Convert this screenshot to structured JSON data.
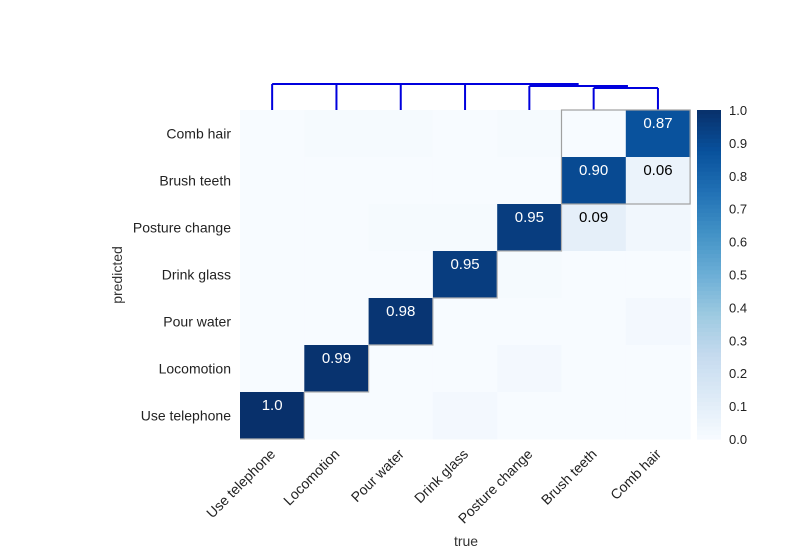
{
  "chart_data": {
    "type": "heatmap",
    "xlabel": "true",
    "ylabel": "predicted",
    "x_categories": [
      "Use telephone",
      "Locomotion",
      "Pour water",
      "Drink glass",
      "Posture change",
      "Brush teeth",
      "Comb hair"
    ],
    "y_categories_top_to_bottom": [
      "Comb hair",
      "Brush teeth",
      "Posture change",
      "Drink glass",
      "Pour water",
      "Locomotion",
      "Use telephone"
    ],
    "matrix_rows_top_to_bottom": [
      [
        0.0,
        0.01,
        0.01,
        0.0,
        0.01,
        0.0,
        0.87
      ],
      [
        0.0,
        0.0,
        0.0,
        0.0,
        0.0,
        0.9,
        0.06
      ],
      [
        0.0,
        0.0,
        0.01,
        0.01,
        0.95,
        0.09,
        0.03
      ],
      [
        0.0,
        0.0,
        0.0,
        0.95,
        0.01,
        0.0,
        0.0
      ],
      [
        0.0,
        0.0,
        0.98,
        0.0,
        0.0,
        0.0,
        0.02
      ],
      [
        0.0,
        0.99,
        0.0,
        0.0,
        0.02,
        0.0,
        0.0
      ],
      [
        1.0,
        0.0,
        0.0,
        0.02,
        0.0,
        0.0,
        0.0
      ]
    ],
    "annotations": [
      {
        "row": 0,
        "col": 6,
        "text": "0.87",
        "color": "#ffffff"
      },
      {
        "row": 1,
        "col": 5,
        "text": "0.90",
        "color": "#ffffff"
      },
      {
        "row": 1,
        "col": 6,
        "text": "0.06",
        "color": "#000000"
      },
      {
        "row": 2,
        "col": 4,
        "text": "0.95",
        "color": "#ffffff"
      },
      {
        "row": 2,
        "col": 5,
        "text": "0.09",
        "color": "#000000"
      },
      {
        "row": 3,
        "col": 3,
        "text": "0.95",
        "color": "#ffffff"
      },
      {
        "row": 4,
        "col": 2,
        "text": "0.98",
        "color": "#ffffff"
      },
      {
        "row": 5,
        "col": 1,
        "text": "0.99",
        "color": "#ffffff"
      },
      {
        "row": 6,
        "col": 0,
        "text": "1.0",
        "color": "#ffffff"
      }
    ],
    "colorbar": {
      "min": 0.0,
      "max": 1.0,
      "ticks": [
        "0.0",
        "0.1",
        "0.2",
        "0.3",
        "0.4",
        "0.5",
        "0.6",
        "0.7",
        "0.8",
        "0.9",
        "1.0"
      ],
      "colormap": "Blues"
    },
    "highlight_boxes": [
      {
        "row_start": 0,
        "row_end": 1,
        "col_start": 5,
        "col_end": 6
      }
    ],
    "dendrogram": {
      "color": "#0000dd",
      "merges": [
        {
          "left": "Use telephone",
          "right": "rest",
          "level": 1
        },
        {
          "left": "Locomotion",
          "right": "rest",
          "level": 1
        },
        {
          "left": "Pour water",
          "right": "rest",
          "level": 1
        },
        {
          "left": "Drink glass",
          "right": "rest",
          "level": 1
        },
        {
          "left": "Posture change",
          "right": "rest",
          "level": 2
        },
        {
          "left": "Brush teeth",
          "right": "Comb hair",
          "level": 3
        }
      ]
    }
  }
}
